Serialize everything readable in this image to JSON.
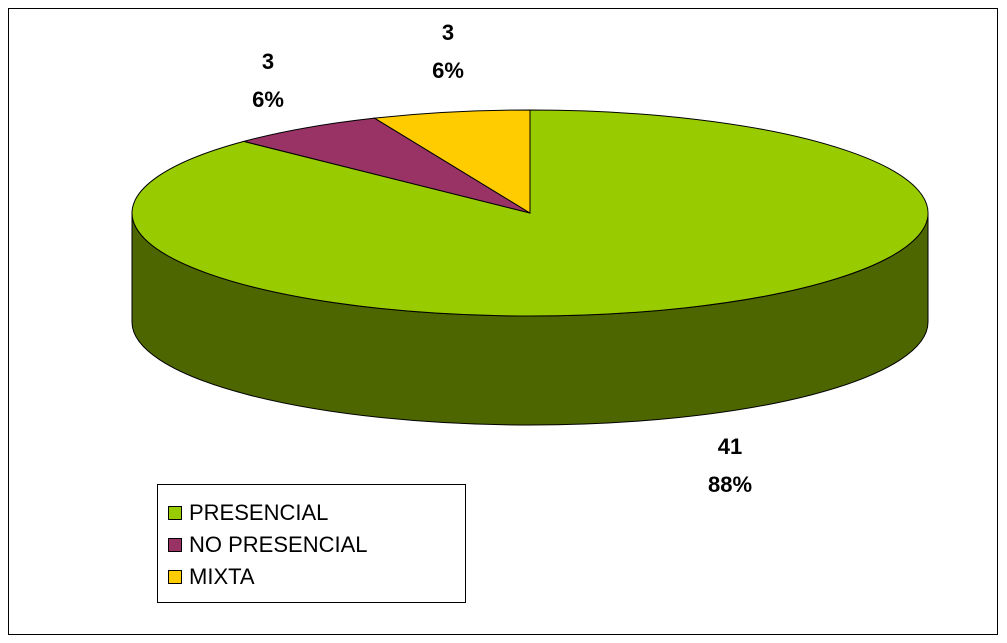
{
  "chart_data": {
    "type": "pie",
    "style": "3d",
    "categories": [
      "PRESENCIAL",
      "NO PRESENCIAL",
      "MIXTA"
    ],
    "values": [
      41,
      3,
      3
    ],
    "percent_labels": [
      "88%",
      "6%",
      "6%"
    ],
    "value_labels": [
      "41",
      "3",
      "3"
    ],
    "colors": [
      "#99CC00",
      "#993366",
      "#FFCC00"
    ],
    "side_color": "#4D6600",
    "outline_color": "#000000",
    "legend_position": "bottom-left"
  }
}
